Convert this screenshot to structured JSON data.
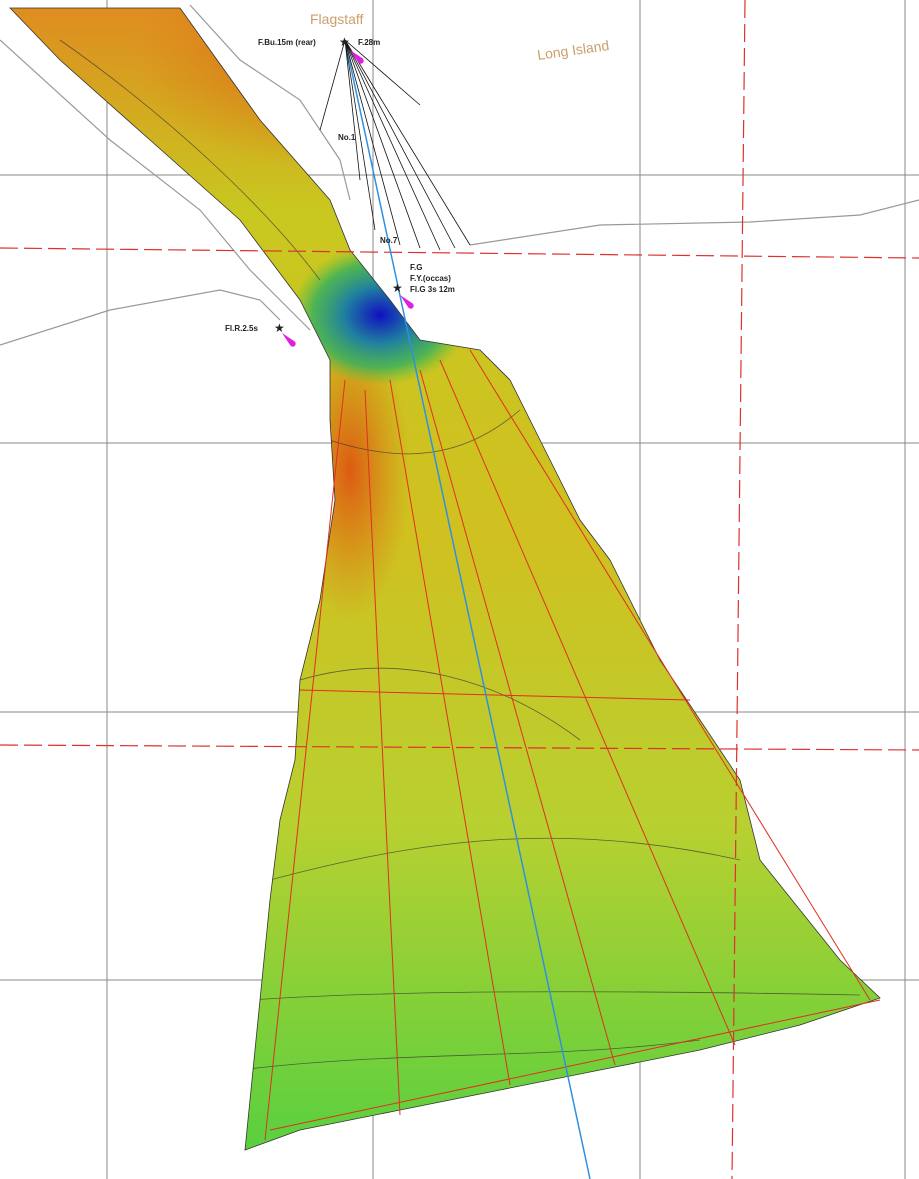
{
  "places": {
    "flagstaff": "Flagstaff",
    "long_island": "Long Island"
  },
  "lights": [
    "F.Bu.15m (rear)",
    "F.28m",
    "F.G",
    "F.Y.(occas)",
    "Fl.G 3s 12m",
    "Fl.R.2.5s"
  ],
  "beacons": [
    "No.1",
    "No.7"
  ]
}
